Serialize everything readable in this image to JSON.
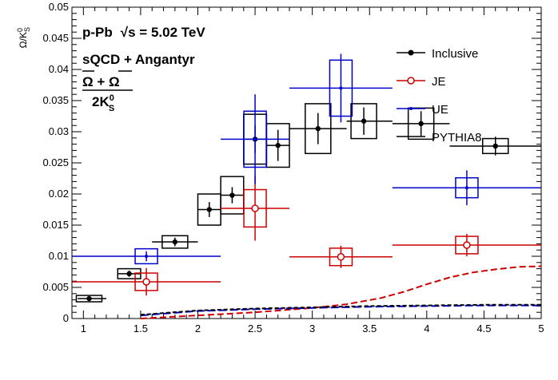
{
  "chart_data": {
    "type": "scatter",
    "ylabel": "Ω/K⁰S",
    "ylabel_parts": {
      "main": "Ω/K",
      "sup": "0",
      "sub": "S"
    },
    "xlim": [
      0.9,
      5.0
    ],
    "ylim": [
      0,
      0.05
    ],
    "x_ticks": [
      1,
      1.5,
      2,
      2.5,
      3,
      3.5,
      4,
      4.5,
      5
    ],
    "x_tick_labels": [
      "1",
      "1.5",
      "2",
      "2.5",
      "3",
      "3.5",
      "4",
      "4.5",
      "5"
    ],
    "y_ticks": [
      0,
      0.005,
      0.01,
      0.015,
      0.02,
      0.025,
      0.03,
      0.035,
      0.04,
      0.045,
      0.05
    ],
    "y_tick_labels": [
      "0",
      "0.005",
      "0.01",
      "0.015",
      "0.02",
      "0.025",
      "0.03",
      "0.035",
      "0.04",
      "0.045",
      "0.05"
    ],
    "annotations": {
      "line1_system": "p-Pb",
      "line1_energy": "√s = 5.02 TeV",
      "line2": "sQCD + Angantyr",
      "ratio_numerator": "Ω + Ω",
      "ratio_denominator_main": "2K",
      "ratio_denominator_sup": "0",
      "ratio_denominator_sub": "S"
    },
    "legend_position": "top-right",
    "series": [
      {
        "name": "Inclusive",
        "color": "#000000",
        "marker": "filled-circle",
        "points": [
          {
            "x": 1.05,
            "xlo": 0.95,
            "xhi": 1.2,
            "y": 0.0032,
            "err": 0.0002,
            "sys": 0.0004
          },
          {
            "x": 1.4,
            "xlo": 1.3,
            "xhi": 1.5,
            "y": 0.0072,
            "err": 0.0005,
            "sys": 0.0008
          },
          {
            "x": 1.8,
            "xlo": 1.6,
            "xhi": 2.0,
            "y": 0.0123,
            "err": 0.0007,
            "sys": 0.001
          },
          {
            "x": 2.1,
            "xlo": 2.0,
            "xhi": 2.2,
            "y": 0.0175,
            "err": 0.0012,
            "sys": 0.0025
          },
          {
            "x": 2.3,
            "xlo": 2.2,
            "xhi": 2.4,
            "y": 0.0198,
            "err": 0.0013,
            "sys": 0.003
          },
          {
            "x": 2.5,
            "xlo": 2.4,
            "xhi": 2.6,
            "y": 0.0288,
            "err": 0.0022,
            "sys": 0.004
          },
          {
            "x": 2.7,
            "xlo": 2.6,
            "xhi": 2.8,
            "y": 0.0278,
            "err": 0.0025,
            "sys": 0.0035
          },
          {
            "x": 3.05,
            "xlo": 2.8,
            "xhi": 3.3,
            "y": 0.0305,
            "err": 0.0025,
            "sys": 0.004
          },
          {
            "x": 3.45,
            "xlo": 3.3,
            "xhi": 3.7,
            "y": 0.0317,
            "err": 0.0022,
            "sys": 0.0028
          },
          {
            "x": 3.95,
            "xlo": 3.7,
            "xhi": 4.2,
            "y": 0.0313,
            "err": 0.002,
            "sys": 0.0025
          },
          {
            "x": 4.6,
            "xlo": 4.2,
            "xhi": 5.0,
            "y": 0.0277,
            "err": 0.0015,
            "sys": 0.0012
          }
        ]
      },
      {
        "name": "JE",
        "color": "#cc0000",
        "marker": "open-circle",
        "points": [
          {
            "x": 1.55,
            "xlo": 0.9,
            "xhi": 2.2,
            "y": 0.0059,
            "err": 0.0022,
            "sys": 0.0014
          },
          {
            "x": 2.5,
            "xlo": 2.2,
            "xhi": 2.8,
            "y": 0.0177,
            "err": 0.0052,
            "sys": 0.003
          },
          {
            "x": 3.25,
            "xlo": 2.8,
            "xhi": 3.7,
            "y": 0.0099,
            "err": 0.0018,
            "sys": 0.0014
          },
          {
            "x": 4.35,
            "xlo": 3.7,
            "xhi": 5.0,
            "y": 0.0118,
            "err": 0.0018,
            "sys": 0.0014
          }
        ]
      },
      {
        "name": "UE",
        "color": "#0000cc",
        "marker": "small-dot",
        "points": [
          {
            "x": 1.55,
            "xlo": 0.9,
            "xhi": 2.2,
            "y": 0.01,
            "err": 0.0008,
            "sys": 0.0012
          },
          {
            "x": 2.5,
            "xlo": 2.2,
            "xhi": 2.8,
            "y": 0.0288,
            "err": 0.0072,
            "sys": 0.0045
          },
          {
            "x": 3.25,
            "xlo": 2.8,
            "xhi": 3.7,
            "y": 0.037,
            "err": 0.0055,
            "sys": 0.0045
          },
          {
            "x": 4.35,
            "xlo": 3.7,
            "xhi": 5.0,
            "y": 0.021,
            "err": 0.0028,
            "sys": 0.0016
          }
        ]
      },
      {
        "name": "PYTHIA8",
        "color": "#000000",
        "marker": "line",
        "curves": [
          {
            "color": "#cc0000",
            "dash": "8,4",
            "x": [
              1.5,
              2.0,
              2.5,
              3.0,
              3.3,
              3.6,
              3.8,
              4.0,
              4.2,
              4.4,
              4.6,
              4.8,
              5.0
            ],
            "y": [
              0.0,
              0.0005,
              0.001,
              0.0017,
              0.0023,
              0.0033,
              0.0043,
              0.0055,
              0.0066,
              0.0074,
              0.0079,
              0.0083,
              0.0084
            ]
          },
          {
            "color": "#0000cc",
            "dash": "10,4",
            "x": [
              1.5,
              2.0,
              2.5,
              3.0,
              3.5,
              4.0,
              4.5,
              5.0
            ],
            "y": [
              0.0005,
              0.0012,
              0.0015,
              0.0017,
              0.0019,
              0.002,
              0.0021,
              0.0021
            ]
          },
          {
            "color": "#000000",
            "dash": "5,3",
            "x": [
              1.5,
              2.0,
              2.5,
              3.0,
              3.5,
              4.0,
              4.5,
              5.0
            ],
            "y": [
              0.0006,
              0.0013,
              0.0016,
              0.0018,
              0.002,
              0.0021,
              0.0022,
              0.0022
            ]
          }
        ]
      }
    ]
  }
}
